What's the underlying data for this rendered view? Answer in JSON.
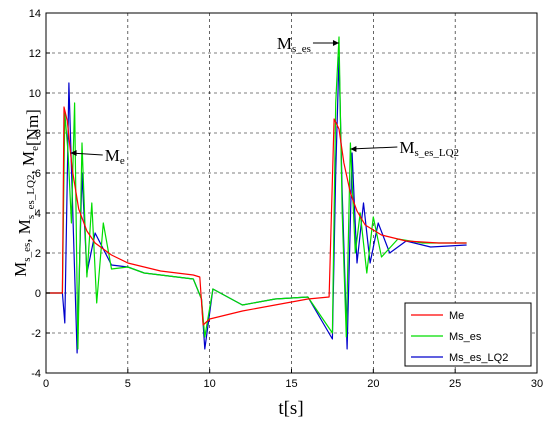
{
  "chart_data": {
    "type": "line",
    "xlabel": "t[s]",
    "ylabel_parts": [
      {
        "text": "M",
        "sub": "s_es"
      },
      {
        "text": ", M",
        "sub": "s_es_LQ2"
      },
      {
        "text": ", M",
        "sub": "e"
      },
      {
        "text": "[Nm]",
        "sub": ""
      }
    ],
    "xlim": [
      0,
      30
    ],
    "ylim": [
      -4,
      14
    ],
    "xticks": [
      0,
      5,
      10,
      15,
      20,
      25,
      30
    ],
    "yticks": [
      -4,
      -2,
      0,
      2,
      4,
      6,
      8,
      10,
      12,
      14
    ],
    "grid": true,
    "legend_position": "bottom-right",
    "series": [
      {
        "name": "Me",
        "color": "#ff0000",
        "x": [
          0,
          1.0,
          1.1,
          1.3,
          1.6,
          2.0,
          2.5,
          3.0,
          4.0,
          5.0,
          6.0,
          7.0,
          8.0,
          9.0,
          9.4,
          9.6,
          10.0,
          12.0,
          14.0,
          16.0,
          17.3,
          17.6,
          17.9,
          18.2,
          18.6,
          19.0,
          19.5,
          20.5,
          22.0,
          24.0,
          25.7
        ],
        "y": [
          0,
          0,
          9.3,
          8.6,
          6.2,
          4.2,
          3.1,
          2.5,
          1.9,
          1.5,
          1.3,
          1.1,
          1.0,
          0.9,
          0.8,
          -1.6,
          -1.3,
          -0.9,
          -0.6,
          -0.3,
          -0.2,
          8.7,
          8.2,
          6.5,
          5.0,
          4.1,
          3.4,
          2.9,
          2.6,
          2.5,
          2.5
        ]
      },
      {
        "name": "Ms_es",
        "color": "#00dd00",
        "x": [
          0,
          1.0,
          1.15,
          1.35,
          1.55,
          1.75,
          1.95,
          2.2,
          2.5,
          2.8,
          3.1,
          3.5,
          4.0,
          5.0,
          6.0,
          7.0,
          8.0,
          9.0,
          9.5,
          9.7,
          10.2,
          12.0,
          14.0,
          16.0,
          17.5,
          17.7,
          17.9,
          18.1,
          18.35,
          18.6,
          18.9,
          19.2,
          19.6,
          20.0,
          20.5,
          21.5,
          23.0,
          25.7
        ],
        "y": [
          0,
          0,
          9.0,
          7.0,
          3.5,
          9.5,
          -2.8,
          7.5,
          0.8,
          4.5,
          -0.5,
          3.5,
          1.2,
          1.3,
          1.0,
          0.9,
          0.8,
          0.7,
          -0.3,
          -2.2,
          0.2,
          -0.6,
          -0.3,
          -0.2,
          -2.0,
          9.5,
          12.8,
          4.0,
          -2.2,
          7.5,
          2.0,
          4.0,
          1.0,
          3.8,
          1.8,
          2.7,
          2.5,
          2.5
        ]
      },
      {
        "name": "Ms_es_LQ2",
        "color": "#0000cc",
        "x": [
          0,
          1.0,
          1.15,
          1.4,
          1.6,
          1.9,
          2.2,
          2.5,
          3.0,
          4.0,
          5.0,
          6.0,
          7.0,
          8.0,
          9.0,
          9.5,
          9.7,
          10.2,
          12.0,
          14.0,
          16.0,
          17.5,
          17.7,
          17.9,
          18.1,
          18.4,
          18.7,
          19.0,
          19.4,
          19.8,
          20.3,
          21.0,
          22.0,
          23.5,
          25.7
        ],
        "y": [
          0,
          0,
          -1.5,
          10.5,
          5.0,
          -3.0,
          6.0,
          1.0,
          3.0,
          1.4,
          1.3,
          1.0,
          0.9,
          0.8,
          0.7,
          -0.3,
          -2.8,
          0.2,
          -0.6,
          -0.3,
          -0.2,
          -2.3,
          6.0,
          11.8,
          5.0,
          -2.8,
          7.0,
          1.5,
          4.5,
          1.5,
          3.5,
          2.0,
          2.6,
          2.3,
          2.4
        ]
      }
    ],
    "annotations": [
      {
        "base": "M",
        "sub": "e",
        "x": 2.0,
        "y": 6.9,
        "arrow_to": [
          1.5,
          7.0
        ],
        "text_side": "right"
      },
      {
        "base": "M",
        "sub": "s_es",
        "x": 14.9,
        "y": 12.5,
        "arrow_to": [
          17.9,
          12.5
        ],
        "text_side": "left"
      },
      {
        "base": "M",
        "sub": "s_es_LQ2",
        "x": 20.0,
        "y": 7.3,
        "arrow_to": [
          18.6,
          7.2
        ],
        "text_side": "right"
      }
    ]
  }
}
